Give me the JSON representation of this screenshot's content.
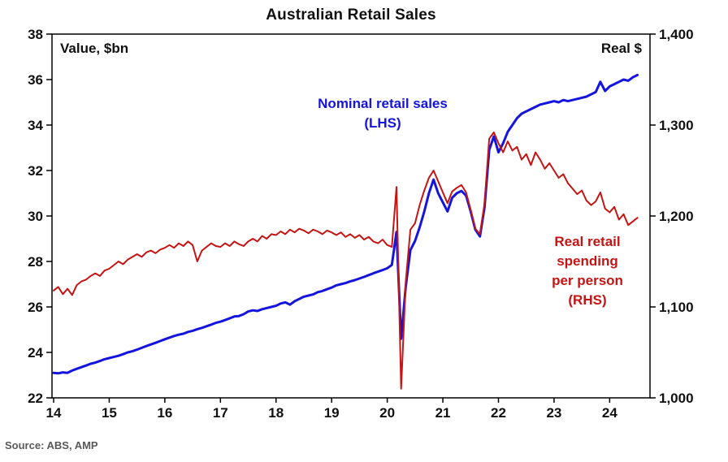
{
  "title": "Australian Retail Sales",
  "source": "Source: ABS, AMP",
  "labels": {
    "left_axis_unit": "Value, $bn",
    "right_axis_unit": "Real $",
    "blue_annotation_line1": "Nominal retail sales",
    "blue_annotation_line2": "(LHS)",
    "red_annotation_line1": "Real retail",
    "red_annotation_line2": "spending",
    "red_annotation_line3": "per person",
    "red_annotation_line4": "(RHS)"
  },
  "colors": {
    "nominal_line": "#1414dc",
    "real_line": "#c41414",
    "axis": "#000000",
    "source_text": "#595959"
  },
  "chart_data": {
    "type": "line",
    "title": "Australian Retail Sales",
    "grid": false,
    "x_range": [
      2014,
      2024.667
    ],
    "x_step_per_point_years": 0.0833333,
    "x_ticks": {
      "values": [
        2014,
        2015,
        2016,
        2017,
        2018,
        2019,
        2020,
        2021,
        2022,
        2023,
        2024
      ],
      "labels": [
        "14",
        "15",
        "16",
        "17",
        "18",
        "19",
        "20",
        "21",
        "22",
        "23",
        "24"
      ]
    },
    "y_left": {
      "label": "Value, $bn",
      "range": [
        22,
        38
      ],
      "tick_values": [
        22,
        24,
        26,
        28,
        30,
        32,
        34,
        36,
        38
      ],
      "tick_labels": [
        "22",
        "24",
        "26",
        "28",
        "30",
        "32",
        "34",
        "36",
        "38"
      ]
    },
    "y_right": {
      "label": "Real $",
      "range": [
        1000,
        1400
      ],
      "tick_values": [
        1000,
        1100,
        1200,
        1300,
        1400
      ],
      "tick_labels": [
        "1,000",
        "1,100",
        "1,200",
        "1,300",
        "1,400"
      ]
    },
    "series": [
      {
        "name": "Nominal retail sales (LHS)",
        "axis": "left",
        "color": "#1414dc",
        "stroke_width": 3,
        "values": [
          23.1,
          23.08,
          23.12,
          23.1,
          23.2,
          23.28,
          23.35,
          23.42,
          23.5,
          23.55,
          23.62,
          23.7,
          23.75,
          23.8,
          23.85,
          23.92,
          24.0,
          24.05,
          24.12,
          24.2,
          24.28,
          24.35,
          24.42,
          24.5,
          24.58,
          24.65,
          24.72,
          24.78,
          24.82,
          24.9,
          24.95,
          25.02,
          25.08,
          25.15,
          25.22,
          25.3,
          25.35,
          25.42,
          25.5,
          25.58,
          25.6,
          25.68,
          25.8,
          25.85,
          25.82,
          25.9,
          25.95,
          26.0,
          26.05,
          26.15,
          26.2,
          26.1,
          26.25,
          26.35,
          26.45,
          26.5,
          26.55,
          26.65,
          26.7,
          26.78,
          26.85,
          26.95,
          27.0,
          27.05,
          27.12,
          27.18,
          27.25,
          27.32,
          27.4,
          27.48,
          27.55,
          27.62,
          27.7,
          27.85,
          29.3,
          24.6,
          26.9,
          28.5,
          28.9,
          29.5,
          30.2,
          31.0,
          31.6,
          31.0,
          30.6,
          30.2,
          30.8,
          31.0,
          31.1,
          30.9,
          30.2,
          29.4,
          29.1,
          30.4,
          32.9,
          33.5,
          32.8,
          33.2,
          33.7,
          34.0,
          34.3,
          34.5,
          34.6,
          34.7,
          34.8,
          34.9,
          34.95,
          35.0,
          35.05,
          35.0,
          35.1,
          35.05,
          35.1,
          35.15,
          35.2,
          35.25,
          35.35,
          35.45,
          35.9,
          35.5,
          35.7,
          35.8,
          35.9,
          36.0,
          35.95,
          36.1,
          36.2
        ]
      },
      {
        "name": "Real retail spending per person (RHS)",
        "axis": "right",
        "color": "#c41414",
        "stroke_width": 2,
        "values": [
          1118,
          1122,
          1114,
          1120,
          1113,
          1124,
          1128,
          1130,
          1134,
          1137,
          1134,
          1140,
          1142,
          1146,
          1150,
          1147,
          1152,
          1155,
          1158,
          1155,
          1160,
          1162,
          1159,
          1163,
          1165,
          1168,
          1165,
          1170,
          1167,
          1172,
          1168,
          1150,
          1162,
          1166,
          1170,
          1167,
          1166,
          1170,
          1167,
          1172,
          1169,
          1167,
          1172,
          1175,
          1172,
          1178,
          1175,
          1180,
          1179,
          1183,
          1180,
          1185,
          1182,
          1186,
          1184,
          1181,
          1185,
          1183,
          1180,
          1184,
          1182,
          1179,
          1182,
          1177,
          1180,
          1176,
          1179,
          1174,
          1177,
          1172,
          1170,
          1174,
          1168,
          1166,
          1232,
          1010,
          1128,
          1185,
          1192,
          1212,
          1228,
          1242,
          1250,
          1238,
          1226,
          1214,
          1227,
          1231,
          1234,
          1226,
          1207,
          1186,
          1180,
          1214,
          1285,
          1292,
          1280,
          1270,
          1282,
          1272,
          1276,
          1262,
          1268,
          1256,
          1270,
          1262,
          1252,
          1258,
          1250,
          1242,
          1246,
          1236,
          1230,
          1224,
          1228,
          1217,
          1212,
          1216,
          1226,
          1208,
          1204,
          1210,
          1196,
          1202,
          1190,
          1194,
          1198
        ]
      }
    ],
    "legend_position": "in-plot annotations"
  }
}
